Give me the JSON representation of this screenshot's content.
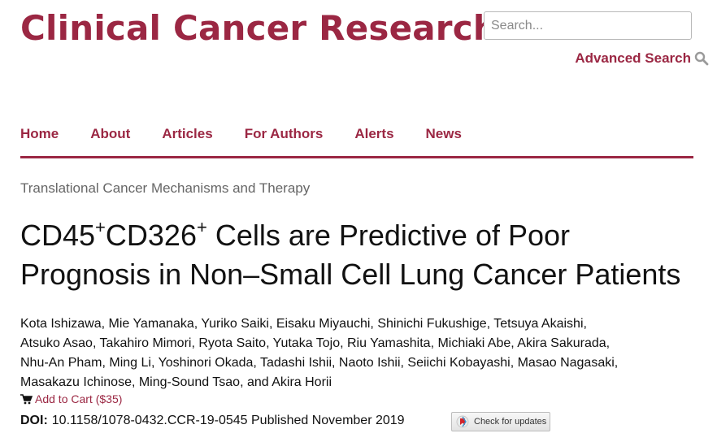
{
  "header": {
    "brand": "Clinical Cancer Research",
    "search_placeholder": "Search...",
    "advanced_search": "Advanced Search",
    "advanced_search_icon": "magnifier-icon"
  },
  "nav": {
    "items": [
      "Home",
      "About",
      "Articles",
      "For Authors",
      "Alerts",
      "News"
    ]
  },
  "article": {
    "section": "Translational Cancer Mechanisms and Therapy",
    "title_part1": "CD45",
    "title_sup1": "+",
    "title_part2": "CD326",
    "title_sup2": "+",
    "title_part3": " Cells are Predictive of Poor Prognosis in Non–Small Cell Lung Cancer Patients",
    "authors": [
      "Kota Ishizawa, Mie Yamanaka, Yuriko Saiki, Eisaku Miyauchi, Shinichi Fukushige, Tetsuya Akaishi,",
      "Atsuko Asao, Takahiro Mimori, Ryota Saito, Yutaka Tojo, Riu Yamashita, Michiaki Abe, Akira Sakurada,",
      "Nhu-An Pham, Ming Li, Yoshinori Okada, Tadashi Ishii, Naoto Ishii, Seiichi Kobayashi, Masao Nagasaki,",
      "Masakazu Ichinose, Ming-Sound Tsao, and Akira Horii"
    ],
    "cart_label": "Add to Cart ($35)",
    "cart_icon": "cart-icon",
    "doi_label": "DOI:",
    "doi_value": "10.1158/1078-0432.CCR-19-0545 Published November 2019",
    "check_updates": "Check for updates"
  },
  "colors": {
    "brand": "#9b2743"
  }
}
